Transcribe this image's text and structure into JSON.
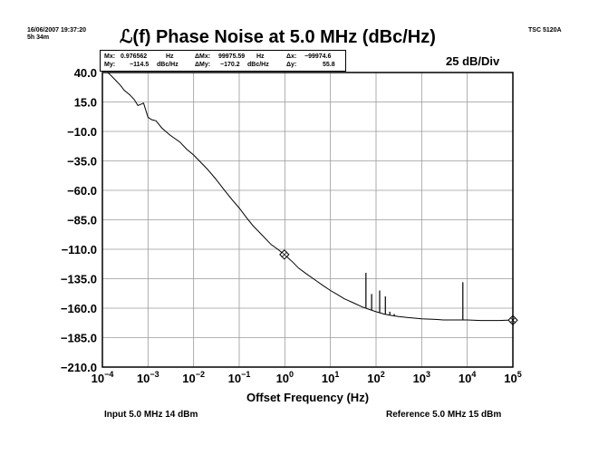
{
  "header": {
    "timestamp_line1": "16/06/2007 19:37:20",
    "timestamp_line2": "5h 34m",
    "model": "TSC 5120A",
    "title": "ℒ(f) Phase Noise at 5.0 MHz (dBc/Hz)",
    "scale": "25 dB/Div"
  },
  "readout": {
    "mx_label": "Mx:",
    "mx_value": "0.976562",
    "mx_unit": "Hz",
    "my_label": "My:",
    "my_value": "−114.5",
    "my_unit": "dBc/Hz",
    "dmx_label": "ΔMx:",
    "dmx_value": "99975.59",
    "dmx_unit": "Hz",
    "dmy_label": "ΔMy:",
    "dmy_value": "−170.2",
    "dmy_unit": "dBc/Hz",
    "dx_label": "Δx:",
    "dx_value": "−99974.6",
    "dy_label": "Δy:",
    "dy_value": "55.8"
  },
  "footer": {
    "input": "Input 5.0 MHz 14 dBm",
    "reference": "Reference 5.0 MHz 15 dBm"
  },
  "chart_data": {
    "type": "line",
    "title": "ℒ(f) Phase Noise at 5.0 MHz (dBc/Hz)",
    "xlabel": "Offset Frequency (Hz)",
    "ylabel": "",
    "x_scale": "log",
    "xlim": [
      0.0001,
      100000
    ],
    "ylim": [
      -210,
      40
    ],
    "grid": true,
    "y_ticks": [
      40,
      15,
      -10,
      -35,
      -60,
      -85,
      -110,
      -135,
      -160,
      -185,
      -210
    ],
    "y_tick_labels": [
      "40.0",
      "15.0",
      "−10.0",
      "−35.0",
      "−60.0",
      "−85.0",
      "−110.0",
      "−135.0",
      "−160.0",
      "−185.0",
      "−210.0"
    ],
    "x_tick_labels": [
      {
        "base": "10",
        "exp": "−4"
      },
      {
        "base": "10",
        "exp": "−3"
      },
      {
        "base": "10",
        "exp": "−2"
      },
      {
        "base": "10",
        "exp": "−1"
      },
      {
        "base": "10",
        "exp": "0"
      },
      {
        "base": "10",
        "exp": "1"
      },
      {
        "base": "10",
        "exp": "2"
      },
      {
        "base": "10",
        "exp": "3"
      },
      {
        "base": "10",
        "exp": "4"
      },
      {
        "base": "10",
        "exp": "5"
      }
    ],
    "series": [
      {
        "color": "#000000",
        "x": [
          0.00013,
          0.00015,
          0.0002,
          0.00025,
          0.0003,
          0.0004,
          0.0005,
          0.0006,
          0.0008,
          0.001,
          0.0012,
          0.0015,
          0.002,
          0.003,
          0.005,
          0.007,
          0.01,
          0.015,
          0.02,
          0.03,
          0.05,
          0.07,
          0.1,
          0.15,
          0.2,
          0.3,
          0.5,
          0.7,
          0.976562,
          1.5,
          2,
          3,
          5,
          7,
          10,
          15,
          20,
          30,
          50,
          70,
          100,
          150,
          200,
          300,
          500,
          700,
          1000,
          2000,
          3000,
          5000,
          10000,
          20000,
          50000,
          100000
        ],
        "y": [
          40,
          38,
          33,
          29,
          25,
          21,
          17,
          12,
          14,
          2,
          0,
          -1,
          -7,
          -13,
          -19,
          -25,
          -30,
          -37,
          -42,
          -50,
          -61,
          -68,
          -75,
          -84,
          -90,
          -97,
          -106,
          -110,
          -114.5,
          -121,
          -126,
          -131,
          -137,
          -141,
          -145,
          -149,
          -152,
          -155,
          -159,
          -161,
          -163,
          -165,
          -166,
          -167,
          -168,
          -168.5,
          -169,
          -169.5,
          -170,
          -170,
          -170,
          -170.5,
          -170.5,
          -170
        ]
      }
    ],
    "spurs": [
      {
        "x": 60,
        "y": -130
      },
      {
        "x": 80,
        "y": -148
      },
      {
        "x": 120,
        "y": -145
      },
      {
        "x": 160,
        "y": -150
      },
      {
        "x": 200,
        "y": -163
      },
      {
        "x": 250,
        "y": -165
      },
      {
        "x": 8000,
        "y": -138
      }
    ],
    "markers": [
      {
        "x": 0.976562,
        "y": -114.5
      },
      {
        "x": 100000,
        "y": -170.2
      }
    ]
  }
}
